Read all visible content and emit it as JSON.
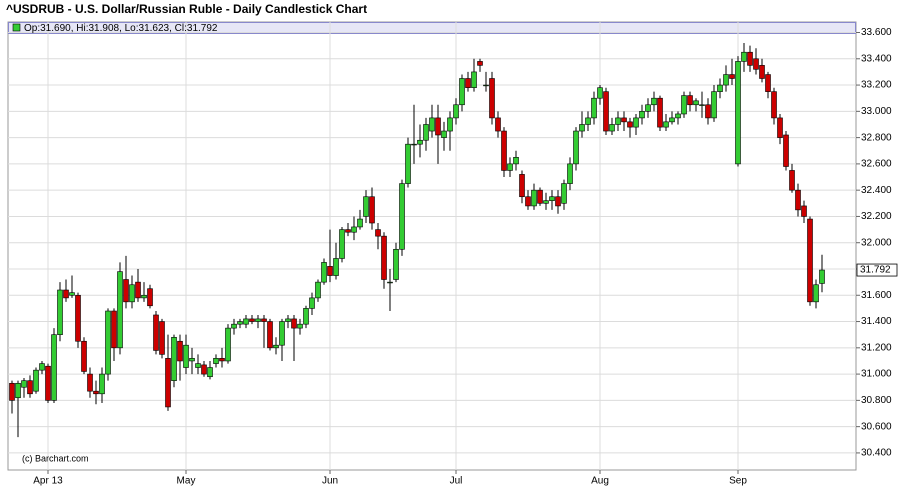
{
  "chart_data": {
    "type": "candlestick",
    "title": "^USDRUB - U.S. Dollar/Russian Ruble - Daily Candlestick Chart",
    "legend_label": "Op:31.690, Hi:31.908, Lo:31.623, Cl:31.792",
    "last_price_label": "31.792",
    "watermark": "(c) Barchart.com",
    "up_color": "#33cc33",
    "down_color": "#cc0000",
    "grid": true,
    "ylim": [
      30.27,
      33.68
    ],
    "yticks": [
      {
        "value": 30.4,
        "label": "30.400"
      },
      {
        "value": 30.6,
        "label": "30.600"
      },
      {
        "value": 30.8,
        "label": "30.800"
      },
      {
        "value": 31.0,
        "label": "31.000"
      },
      {
        "value": 31.2,
        "label": "31.200"
      },
      {
        "value": 31.4,
        "label": "31.400"
      },
      {
        "value": 31.6,
        "label": "31.600"
      },
      {
        "value": 31.8,
        "label": "31.800"
      },
      {
        "value": 32.0,
        "label": "32.000"
      },
      {
        "value": 32.2,
        "label": "32.200"
      },
      {
        "value": 32.4,
        "label": "32.400"
      },
      {
        "value": 32.6,
        "label": "32.600"
      },
      {
        "value": 32.8,
        "label": "32.800"
      },
      {
        "value": 33.0,
        "label": "33.000"
      },
      {
        "value": 33.2,
        "label": "33.200"
      },
      {
        "value": 33.4,
        "label": "33.400"
      },
      {
        "value": 33.6,
        "label": "33.600"
      }
    ],
    "categories": [
      null,
      null,
      null,
      null,
      null,
      null,
      "Apr 13",
      null,
      null,
      null,
      null,
      null,
      null,
      null,
      null,
      null,
      null,
      null,
      null,
      null,
      null,
      null,
      null,
      null,
      null,
      null,
      null,
      null,
      null,
      "May",
      null,
      null,
      null,
      null,
      null,
      null,
      null,
      null,
      null,
      null,
      null,
      null,
      null,
      null,
      null,
      null,
      null,
      null,
      null,
      null,
      null,
      null,
      null,
      "Jun",
      null,
      null,
      null,
      null,
      null,
      null,
      null,
      null,
      null,
      null,
      null,
      null,
      null,
      null,
      null,
      null,
      null,
      null,
      null,
      null,
      "Jul",
      null,
      null,
      null,
      null,
      null,
      null,
      null,
      null,
      null,
      null,
      null,
      null,
      null,
      null,
      null,
      null,
      null,
      null,
      null,
      null,
      null,
      null,
      null,
      "Aug",
      null,
      null,
      null,
      null,
      null,
      null,
      null,
      null,
      null,
      null,
      null,
      null,
      null,
      null,
      null,
      null,
      null,
      null,
      null,
      null,
      null,
      null,
      "Sep",
      null,
      null,
      null,
      null,
      null,
      null,
      null,
      null,
      null,
      null,
      null,
      null,
      null,
      null
    ],
    "open": [
      30.93,
      30.82,
      30.9,
      30.95,
      30.87,
      31.03,
      31.06,
      30.8,
      31.3,
      31.64,
      31.6,
      31.6,
      31.25,
      31.0,
      30.87,
      30.85,
      31.0,
      31.48,
      31.2,
      31.72,
      31.55,
      31.7,
      31.58,
      31.65,
      31.45,
      31.4,
      31.12,
      30.95,
      31.25,
      31.05,
      31.1,
      31.05,
      31.07,
      30.98,
      31.08,
      31.12,
      31.1,
      31.35,
      31.38,
      31.38,
      31.42,
      31.4,
      31.42,
      31.4,
      31.2,
      31.22,
      31.4,
      31.42,
      31.35,
      31.38,
      31.5,
      31.58,
      31.7,
      31.82,
      31.75,
      31.88,
      32.1,
      32.08,
      32.12,
      32.2,
      32.35,
      32.1,
      32.05,
      31.7,
      31.72,
      31.95,
      32.45,
      32.75,
      32.75,
      32.78,
      32.85,
      32.95,
      32.8,
      32.85,
      32.95,
      33.05,
      33.25,
      33.18,
      33.38,
      33.2,
      33.25,
      32.95,
      32.85,
      32.55,
      32.6,
      32.52,
      32.35,
      32.28,
      32.4,
      32.3,
      32.32,
      32.35,
      32.3,
      32.45,
      32.6,
      32.85,
      32.9,
      32.95,
      33.1,
      33.15,
      32.85,
      32.9,
      32.95,
      32.92,
      32.88,
      32.95,
      33.0,
      33.05,
      33.1,
      32.88,
      32.92,
      32.95,
      32.98,
      33.12,
      33.05,
      33.05,
      33.05,
      32.95,
      33.15,
      33.2,
      33.28,
      32.6,
      33.38,
      33.45,
      33.4,
      33.35,
      33.28,
      33.15,
      32.95,
      32.82,
      32.55,
      32.4,
      32.28,
      32.18,
      31.55,
      31.69
    ],
    "high": [
      30.95,
      30.95,
      30.97,
      30.99,
      31.05,
      31.1,
      31.08,
      31.35,
      31.7,
      31.72,
      31.75,
      31.62,
      31.28,
      31.05,
      30.95,
      31.05,
      31.5,
      31.5,
      31.85,
      31.9,
      31.75,
      31.8,
      31.7,
      31.68,
      31.48,
      31.42,
      31.3,
      31.3,
      31.3,
      31.3,
      31.2,
      31.15,
      31.1,
      31.1,
      31.15,
      31.2,
      31.38,
      31.42,
      31.42,
      31.45,
      31.45,
      31.45,
      31.45,
      31.42,
      31.28,
      31.42,
      31.45,
      31.45,
      31.42,
      31.52,
      31.62,
      31.72,
      31.88,
      32.1,
      32.0,
      32.12,
      32.15,
      32.2,
      32.25,
      32.4,
      32.42,
      32.15,
      32.08,
      31.8,
      32.0,
      32.48,
      32.8,
      33.05,
      32.9,
      32.95,
      33.05,
      33.05,
      32.92,
      33.0,
      33.1,
      33.28,
      33.3,
      33.4,
      33.4,
      33.3,
      33.3,
      33.0,
      32.88,
      32.65,
      32.7,
      32.55,
      32.4,
      32.45,
      32.42,
      32.38,
      32.4,
      32.4,
      32.48,
      32.65,
      32.88,
      33.0,
      33.0,
      33.15,
      33.2,
      33.18,
      32.95,
      33.0,
      33.0,
      32.95,
      32.98,
      33.05,
      33.1,
      33.15,
      33.12,
      32.98,
      33.0,
      33.0,
      33.15,
      33.15,
      33.1,
      33.15,
      33.1,
      33.2,
      33.25,
      33.35,
      33.4,
      33.42,
      33.52,
      33.5,
      33.48,
      33.4,
      33.3,
      33.18,
      32.98,
      32.85,
      32.6,
      32.45,
      32.32,
      32.2,
      31.72,
      31.908
    ],
    "low": [
      30.7,
      30.52,
      30.82,
      30.82,
      30.85,
      31.0,
      30.78,
      30.78,
      31.25,
      31.55,
      31.58,
      31.2,
      31.0,
      30.82,
      30.77,
      30.78,
      30.95,
      31.1,
      31.15,
      31.5,
      31.5,
      31.55,
      31.55,
      31.5,
      31.15,
      31.12,
      30.72,
      30.9,
      30.95,
      31.0,
      31.0,
      31.0,
      30.98,
      30.96,
      31.05,
      31.05,
      31.08,
      31.3,
      31.35,
      31.35,
      31.38,
      31.35,
      31.2,
      31.18,
      31.15,
      31.1,
      31.35,
      31.1,
      31.3,
      31.35,
      31.45,
      31.55,
      31.68,
      31.7,
      31.72,
      31.85,
      32.05,
      32.02,
      32.1,
      32.15,
      32.1,
      31.95,
      31.65,
      31.48,
      31.7,
      31.9,
      32.42,
      32.6,
      32.65,
      32.7,
      32.8,
      32.6,
      32.7,
      32.7,
      32.9,
      33.0,
      33.15,
      33.15,
      33.3,
      33.15,
      32.9,
      32.8,
      32.5,
      32.5,
      32.55,
      32.3,
      32.25,
      32.25,
      32.28,
      32.25,
      32.25,
      32.22,
      32.25,
      32.4,
      32.55,
      32.8,
      32.85,
      32.9,
      33.05,
      32.82,
      32.82,
      32.85,
      32.85,
      32.8,
      32.82,
      32.9,
      32.95,
      33.0,
      32.85,
      32.85,
      32.9,
      32.9,
      32.95,
      33.0,
      33.0,
      32.95,
      32.9,
      32.92,
      33.1,
      33.15,
      33.2,
      32.58,
      33.3,
      33.3,
      33.28,
      33.22,
      33.1,
      32.9,
      32.75,
      32.55,
      32.38,
      32.2,
      32.15,
      31.52,
      31.5,
      31.623
    ],
    "close": [
      30.8,
      30.93,
      30.95,
      30.85,
      31.03,
      31.08,
      30.8,
      31.3,
      31.64,
      31.58,
      31.62,
      31.25,
      31.02,
      30.87,
      30.85,
      31.0,
      31.48,
      31.2,
      31.78,
      31.55,
      31.68,
      31.58,
      31.6,
      31.52,
      31.18,
      31.15,
      30.75,
      31.28,
      31.1,
      31.22,
      31.12,
      31.08,
      31.0,
      31.05,
      31.12,
      31.1,
      31.35,
      31.38,
      31.4,
      31.42,
      31.4,
      31.42,
      31.4,
      31.2,
      31.22,
      31.4,
      31.42,
      31.35,
      31.38,
      31.5,
      31.58,
      31.7,
      31.85,
      31.75,
      31.88,
      32.1,
      32.08,
      32.12,
      32.18,
      32.35,
      32.15,
      32.05,
      31.72,
      31.7,
      31.95,
      32.45,
      32.75,
      32.75,
      32.78,
      32.9,
      32.95,
      32.82,
      32.85,
      32.95,
      33.05,
      33.25,
      33.18,
      33.3,
      33.35,
      33.2,
      32.95,
      32.85,
      32.55,
      32.6,
      32.65,
      32.35,
      32.28,
      32.4,
      32.3,
      32.32,
      32.35,
      32.28,
      32.45,
      32.6,
      32.85,
      32.9,
      32.95,
      33.1,
      33.18,
      32.85,
      32.9,
      32.95,
      32.92,
      32.88,
      32.95,
      33.0,
      33.05,
      33.1,
      32.88,
      32.92,
      32.95,
      32.98,
      33.12,
      33.05,
      33.08,
      33.05,
      32.95,
      33.15,
      33.2,
      33.28,
      33.25,
      33.38,
      33.45,
      33.35,
      33.32,
      33.25,
      33.15,
      32.95,
      32.8,
      32.58,
      32.4,
      32.25,
      32.2,
      31.55,
      31.68,
      31.792
    ]
  }
}
